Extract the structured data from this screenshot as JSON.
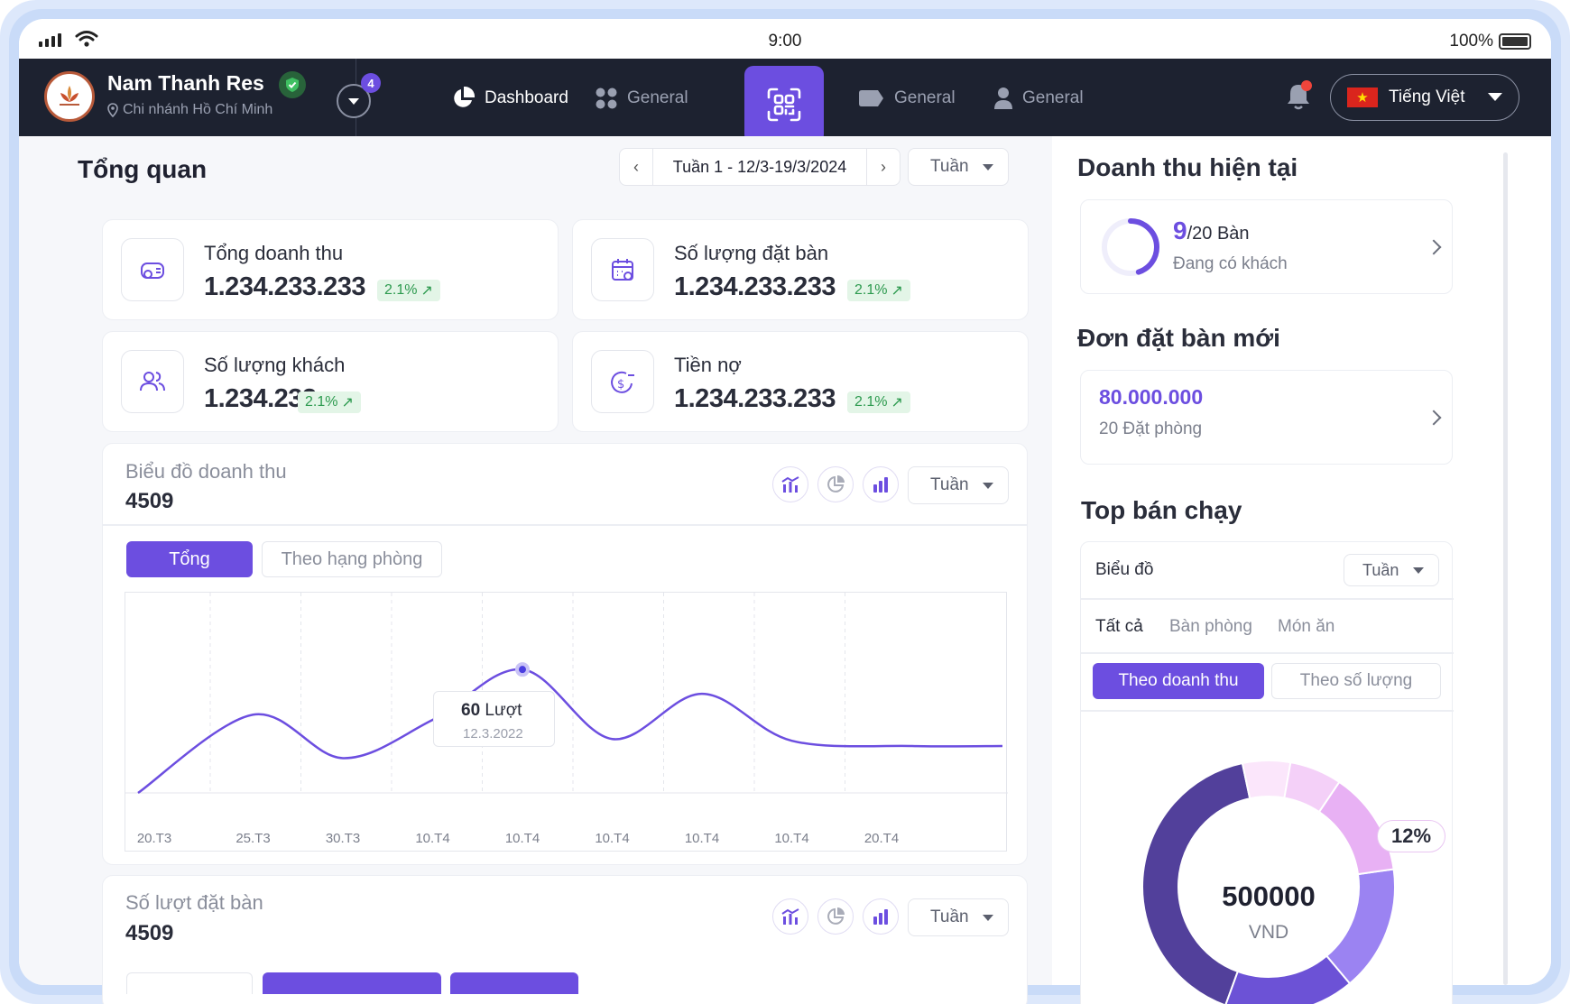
{
  "status_bar": {
    "time": "9:00",
    "battery": "100%"
  },
  "brand": {
    "name": "Nam Thanh Res",
    "branch": "Chi nhánh Hồ Chí Minh",
    "branch_count": "4"
  },
  "nav": {
    "items": [
      {
        "label": "Dashboard",
        "icon": "pie-chart-icon",
        "active": true
      },
      {
        "label": "General",
        "icon": "apps-grid-icon"
      },
      {
        "label": "General",
        "icon": "tag-icon"
      },
      {
        "label": "General",
        "icon": "user-icon"
      }
    ],
    "scan_icon": "qr-scan-icon",
    "language": "Tiếng Việt"
  },
  "overview": {
    "title": "Tổng quan",
    "week_label": "Tuần 1 - 12/3-19/3/2024",
    "period": "Tuần",
    "stats": [
      {
        "title": "Tổng doanh thu",
        "value": "1.234.233.233",
        "change": "2.1%",
        "icon": "money-bag-icon"
      },
      {
        "title": "Số lượng đặt bàn",
        "value": "1.234.233.233",
        "change": "2.1%",
        "icon": "calendar-check-icon"
      },
      {
        "title": "Số lượng khách",
        "value": "1.234.233",
        "change": "2.1%",
        "icon": "users-icon"
      },
      {
        "title": "Tiền nợ",
        "value": "1.234.233.233",
        "change": "2.1%",
        "icon": "debt-dollar-icon"
      }
    ]
  },
  "revenue_chart_card": {
    "title": "Biểu đồ doanh thu",
    "total": "4509",
    "period": "Tuần",
    "tabs": [
      "Tổng",
      "Theo hạng phòng"
    ],
    "tooltip": {
      "value": "60",
      "unit": "Lượt",
      "date": "12.3.2022"
    }
  },
  "chart_data": {
    "type": "line",
    "x": [
      "20.T3",
      "25.T3",
      "30.T3",
      "10.T4",
      "10.T4",
      "10.T4",
      "10.T4",
      "10.T4",
      "20.T4"
    ],
    "series": [
      {
        "values": [
          0,
          45,
          20,
          42,
          71,
          31,
          57,
          30,
          27
        ]
      }
    ],
    "ylim": [
      0,
      110
    ],
    "highlight": {
      "value": 60,
      "unit": "Lượt",
      "date": "12.3.2022"
    },
    "grid": "vertical-dashed",
    "color": "#6c4ee0"
  },
  "bookings_card": {
    "title": "Số lượt đặt bàn",
    "total": "4509",
    "period": "Tuần"
  },
  "current_revenue": {
    "title": "Doanh thu hiện tại",
    "occupied": "9",
    "total_tables": "/20 Bàn",
    "status": "Đang có khách",
    "progress": 0.45
  },
  "new_bookings": {
    "title": "Đơn đặt bàn mới",
    "amount": "80.000.000",
    "count": "20 Đặt phòng"
  },
  "top_selling": {
    "title": "Top bán chạy",
    "chart_label": "Biểu đồ",
    "period": "Tuần",
    "filters": [
      "Tất cả",
      "Bàn phòng",
      "Món ăn"
    ],
    "modes": [
      "Theo doanh thu",
      "Theo số lượng"
    ],
    "donut_value": "500000",
    "donut_unit": "VND",
    "highlight_pct": "12%",
    "colors": [
      "#52409b",
      "#6c52d6",
      "#9b83f2",
      "#e8b1f4",
      "#f4d0f8",
      "#fbe6fb"
    ]
  }
}
